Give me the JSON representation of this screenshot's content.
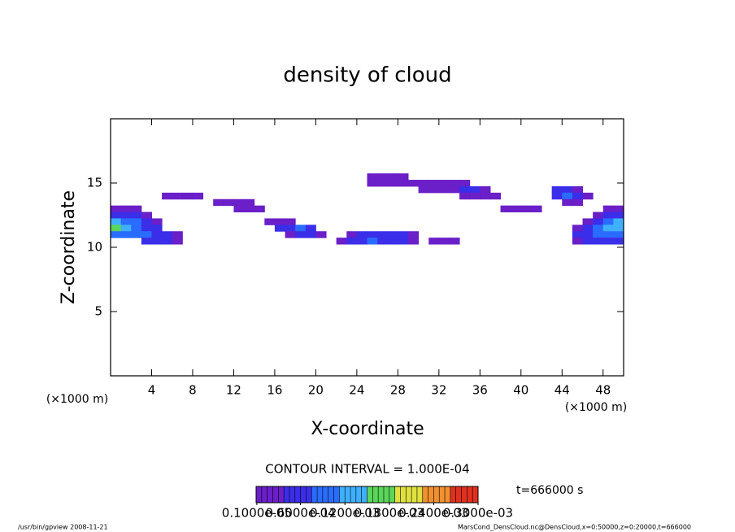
{
  "chart_data": {
    "type": "contour",
    "title": "density of cloud",
    "xlabel": "X-coordinate",
    "ylabel": "Z-coordinate",
    "x_unit_label_left": "(×1000 m)",
    "x_unit_label_right": "(×1000 m)",
    "xlim": [
      0,
      50
    ],
    "ylim": [
      0,
      20
    ],
    "xticks": [
      4,
      8,
      12,
      16,
      20,
      24,
      28,
      32,
      36,
      40,
      44,
      48
    ],
    "yticks": [
      5,
      10,
      15
    ],
    "contour_interval_label": "CONTOUR INTERVAL = 1.000E-04",
    "time_label": "t=666000 s",
    "footer_left": "/usr/bin/gpview   2008-11-21",
    "footer_right": "MarsCond_DensCloud.nc@DensCloud,x=0:50000,z=0:20000,t=666000",
    "colors": [
      "#6a1fc8",
      "#3b2ee8",
      "#2a6cff",
      "#3fb0ff",
      "#5ad65a",
      "#e0e040",
      "#f09030",
      "#e03020"
    ],
    "clim": [
      0,
      0.0003
    ],
    "colorbar_ticks": [
      {
        "value": 1e-06,
        "label": "0.1000e-05"
      },
      {
        "value": 6e-05,
        "label": "0.6000e-04"
      },
      {
        "value": 0.00012,
        "label": "0.1200e-03"
      },
      {
        "value": 0.00018,
        "label": "0.1800e-03"
      },
      {
        "value": 0.00024,
        "label": "0.2400e-03"
      },
      {
        "value": 0.0003,
        "label": "0.3000e-03"
      }
    ],
    "cells": {
      "x": [
        0.5,
        1.5,
        2.5,
        0.5,
        1.5,
        2.5,
        3.5,
        0.5,
        1.5,
        2.5,
        3.5,
        4.5,
        0.5,
        1.5,
        2.5,
        3.5,
        4.5,
        0.5,
        1.5,
        2.5,
        3.5,
        4.5,
        5.5,
        6.5,
        3.5,
        4.5,
        5.5,
        6.5,
        5.5,
        6.5,
        7.5,
        8.5,
        10.5,
        11.5,
        12.5,
        13.5,
        12.5,
        13.5,
        14.5,
        15.5,
        16.5,
        17.5,
        16.5,
        17.5,
        18.5,
        19.5,
        17.5,
        18.5,
        19.5,
        20.5,
        23.5,
        24.5,
        25.5,
        26.5,
        27.5,
        28.5,
        29.5,
        22.5,
        23.5,
        24.5,
        25.5,
        26.5,
        27.5,
        28.5,
        29.5,
        31.5,
        32.5,
        33.5,
        25.5,
        26.5,
        27.5,
        28.5,
        25.5,
        26.5,
        27.5,
        28.5,
        29.5,
        30.5,
        31.5,
        32.5,
        33.5,
        34.5,
        30.5,
        31.5,
        32.5,
        33.5,
        34.5,
        35.5,
        36.5,
        34.5,
        35.5,
        36.5,
        37.5,
        38.5,
        39.5,
        40.5,
        41.5,
        43.5,
        44.5,
        45.5,
        43.5,
        44.5,
        45.5,
        46.5,
        44.5,
        45.5,
        48.5,
        49.5,
        47.5,
        48.5,
        49.5,
        46.5,
        47.5,
        48.5,
        49.5,
        45.5,
        46.5,
        47.5,
        48.5,
        49.5,
        45.5,
        46.5,
        47.5,
        48.5,
        49.5,
        45.5,
        46.5,
        47.5,
        48.5,
        49.5
      ],
      "z": [
        13,
        13,
        13,
        12.5,
        12.5,
        12.5,
        12.5,
        12,
        12,
        12,
        12,
        12,
        11.5,
        11.5,
        11.5,
        11.5,
        11.5,
        11,
        11,
        11,
        11,
        11,
        11,
        11,
        10.5,
        10.5,
        10.5,
        10.5,
        14,
        14,
        14,
        14,
        13.5,
        13.5,
        13.5,
        13.5,
        13,
        13,
        13,
        12,
        12,
        12,
        11.5,
        11.5,
        11.5,
        11.5,
        11,
        11,
        11,
        11,
        11,
        11,
        11,
        11,
        11,
        11,
        11,
        10.5,
        10.5,
        10.5,
        10.5,
        10.5,
        10.5,
        10.5,
        10.5,
        10.5,
        10.5,
        10.5,
        15.5,
        15.5,
        15.5,
        15.5,
        15,
        15,
        15,
        15,
        15,
        15,
        15,
        15,
        15,
        15,
        14.5,
        14.5,
        14.5,
        14.5,
        14.5,
        14.5,
        14.5,
        14,
        14,
        14,
        14,
        13,
        13,
        13,
        13,
        14.5,
        14.5,
        14.5,
        14,
        14,
        14,
        14,
        13.5,
        13.5,
        13,
        13,
        12.5,
        12.5,
        12.5,
        12,
        12,
        12,
        12,
        11.5,
        11.5,
        11.5,
        11.5,
        11.5,
        11,
        11,
        11,
        11,
        11,
        10.5,
        10.5,
        10.5,
        10.5,
        10.5
      ],
      "values": [
        3e-05,
        3e-05,
        3e-05,
        6e-05,
        5e-05,
        4e-05,
        3e-05,
        0.00012,
        0.0001,
        8e-05,
        5e-05,
        3e-05,
        0.00015,
        0.00013,
        0.0001,
        7e-05,
        4e-05,
        0.0001,
        0.0001,
        9e-05,
        8e-05,
        6e-05,
        4e-05,
        3e-05,
        4e-05,
        5e-05,
        5e-05,
        3e-05,
        2e-05,
        3e-05,
        3e-05,
        2e-05,
        2e-05,
        3e-05,
        3e-05,
        2e-05,
        2e-05,
        2e-05,
        2e-05,
        2e-05,
        3e-05,
        3e-05,
        4e-05,
        7e-05,
        8e-05,
        4e-05,
        3e-05,
        5e-05,
        4e-05,
        2e-05,
        3e-05,
        4e-05,
        5e-05,
        6e-05,
        7e-05,
        5e-05,
        3e-05,
        3e-05,
        6e-05,
        7e-05,
        9e-05,
        7e-05,
        6e-05,
        4e-05,
        3e-05,
        2e-05,
        2e-05,
        2e-05,
        2e-05,
        3e-05,
        3e-05,
        2e-05,
        3e-05,
        3e-05,
        3e-05,
        3e-05,
        3e-05,
        3e-05,
        3e-05,
        3e-05,
        3e-05,
        3e-05,
        2e-05,
        3e-05,
        3e-05,
        3e-05,
        4e-05,
        6e-05,
        3e-05,
        3e-05,
        3e-05,
        3e-05,
        3e-05,
        2e-05,
        2e-05,
        2e-05,
        2e-05,
        4e-05,
        5e-05,
        3e-05,
        4e-05,
        9e-05,
        7e-05,
        3e-05,
        3e-05,
        3e-05,
        3e-05,
        3e-05,
        3e-05,
        5e-05,
        7e-05,
        3e-05,
        6e-05,
        0.0001,
        0.00013,
        3e-05,
        6e-05,
        9e-05,
        0.00012,
        0.00014,
        4e-05,
        7e-05,
        9e-05,
        0.0001,
        0.0001,
        3e-05,
        4e-05,
        4e-05,
        4e-05,
        4e-05
      ]
    }
  }
}
